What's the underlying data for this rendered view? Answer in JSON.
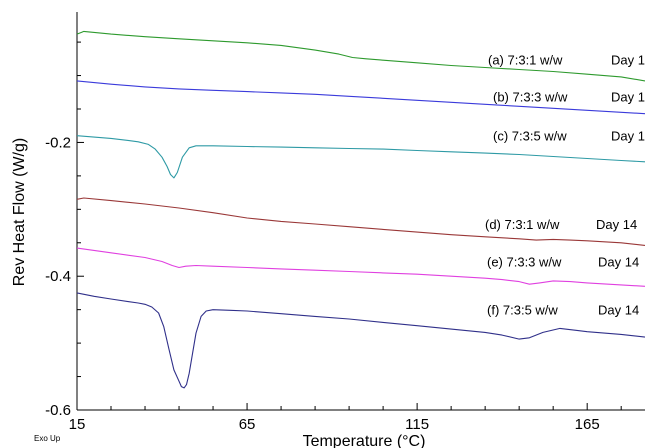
{
  "chart_data": {
    "type": "line",
    "title": "",
    "xlabel": "Temperature (°C)",
    "ylabel": "Rev Heat Flow (W/g)",
    "corner_note": "Exo Up",
    "xlim": [
      15,
      182
    ],
    "ylim": [
      -0.6,
      -0.005
    ],
    "x_ticks": [
      15,
      65,
      115,
      165
    ],
    "x_tick_labels": [
      "15",
      "65",
      "115",
      "165"
    ],
    "y_ticks": [
      -0.2,
      -0.4,
      -0.6
    ],
    "y_tick_labels": [
      "-0.2",
      "-0.4",
      "-0.6"
    ],
    "grid": false,
    "legend": "none",
    "series": [
      {
        "name": "(a) 7:3:1 w/w",
        "day": "Day 1",
        "color": "#2e9a2e",
        "x": [
          15,
          16.5,
          17,
          25,
          35,
          45,
          55,
          65,
          75,
          85,
          92,
          96,
          100,
          105,
          115,
          125,
          135,
          145,
          155,
          165,
          175,
          182
        ],
        "y": [
          -0.038,
          -0.035,
          -0.034,
          -0.038,
          -0.042,
          -0.045,
          -0.048,
          -0.051,
          -0.055,
          -0.062,
          -0.068,
          -0.073,
          -0.075,
          -0.077,
          -0.081,
          -0.085,
          -0.088,
          -0.091,
          -0.094,
          -0.098,
          -0.102,
          -0.108
        ]
      },
      {
        "name": "(b) 7:3:3 w/w",
        "day": "Day 1",
        "color": "#3b3bdb",
        "x": [
          15,
          25,
          35,
          45,
          55,
          65,
          75,
          85,
          95,
          105,
          115,
          125,
          135,
          145,
          155,
          165,
          175,
          182
        ],
        "y": [
          -0.108,
          -0.113,
          -0.117,
          -0.12,
          -0.122,
          -0.124,
          -0.126,
          -0.128,
          -0.131,
          -0.134,
          -0.137,
          -0.14,
          -0.143,
          -0.146,
          -0.149,
          -0.152,
          -0.155,
          -0.157
        ]
      },
      {
        "name": "(c) 7:3:5 w/w",
        "day": "Day 1",
        "color": "#2e9aa5",
        "x": [
          15,
          20,
          25,
          30,
          33,
          36,
          38,
          40,
          41.5,
          42.5,
          43.5,
          44.5,
          46,
          48,
          50,
          55,
          65,
          75,
          85,
          95,
          105,
          115,
          125,
          135,
          145,
          155,
          165,
          175,
          182
        ],
        "y": [
          -0.19,
          -0.192,
          -0.194,
          -0.197,
          -0.199,
          -0.203,
          -0.21,
          -0.222,
          -0.236,
          -0.248,
          -0.253,
          -0.245,
          -0.222,
          -0.208,
          -0.205,
          -0.205,
          -0.206,
          -0.207,
          -0.208,
          -0.209,
          -0.21,
          -0.212,
          -0.214,
          -0.216,
          -0.218,
          -0.221,
          -0.224,
          -0.227,
          -0.229
        ]
      },
      {
        "name": "(d) 7:3:1 w/w",
        "day": "Day 14",
        "color": "#9a3838",
        "x": [
          15,
          17,
          25,
          35,
          45,
          55,
          65,
          75,
          85,
          95,
          105,
          115,
          125,
          135,
          145,
          150,
          155,
          160,
          165,
          175,
          182
        ],
        "y": [
          -0.285,
          -0.283,
          -0.287,
          -0.292,
          -0.298,
          -0.305,
          -0.313,
          -0.318,
          -0.322,
          -0.326,
          -0.33,
          -0.334,
          -0.338,
          -0.341,
          -0.344,
          -0.346,
          -0.345,
          -0.346,
          -0.347,
          -0.35,
          -0.354
        ]
      },
      {
        "name": "(e) 7:3:3 w/w",
        "day": "Day 14",
        "color": "#e040e0",
        "x": [
          15,
          25,
          35,
          40,
          43,
          45,
          47,
          50,
          55,
          65,
          75,
          85,
          95,
          105,
          115,
          125,
          135,
          140,
          145,
          148,
          151,
          155,
          160,
          165,
          175,
          182
        ],
        "y": [
          -0.358,
          -0.365,
          -0.372,
          -0.378,
          -0.384,
          -0.387,
          -0.385,
          -0.384,
          -0.385,
          -0.387,
          -0.389,
          -0.391,
          -0.393,
          -0.395,
          -0.397,
          -0.4,
          -0.403,
          -0.405,
          -0.408,
          -0.412,
          -0.41,
          -0.407,
          -0.408,
          -0.41,
          -0.413,
          -0.415
        ]
      },
      {
        "name": "(f) 7:3:5 w/w",
        "day": "Day 14",
        "color": "#30308a",
        "x": [
          15,
          20,
          25,
          30,
          33,
          35,
          37,
          39,
          40.5,
          42,
          43.5,
          45,
          45.7,
          46.5,
          47.2,
          48,
          49,
          50,
          51.5,
          53,
          55,
          60,
          65,
          75,
          85,
          95,
          105,
          115,
          125,
          135,
          140,
          145,
          148,
          152,
          157,
          162,
          165,
          175,
          182
        ],
        "y": [
          -0.425,
          -0.43,
          -0.434,
          -0.438,
          -0.44,
          -0.442,
          -0.446,
          -0.455,
          -0.475,
          -0.508,
          -0.54,
          -0.557,
          -0.565,
          -0.567,
          -0.562,
          -0.545,
          -0.515,
          -0.485,
          -0.46,
          -0.452,
          -0.45,
          -0.451,
          -0.452,
          -0.456,
          -0.46,
          -0.464,
          -0.469,
          -0.474,
          -0.479,
          -0.484,
          -0.488,
          -0.494,
          -0.492,
          -0.484,
          -0.478,
          -0.481,
          -0.483,
          -0.487,
          -0.491
        ]
      }
    ]
  }
}
